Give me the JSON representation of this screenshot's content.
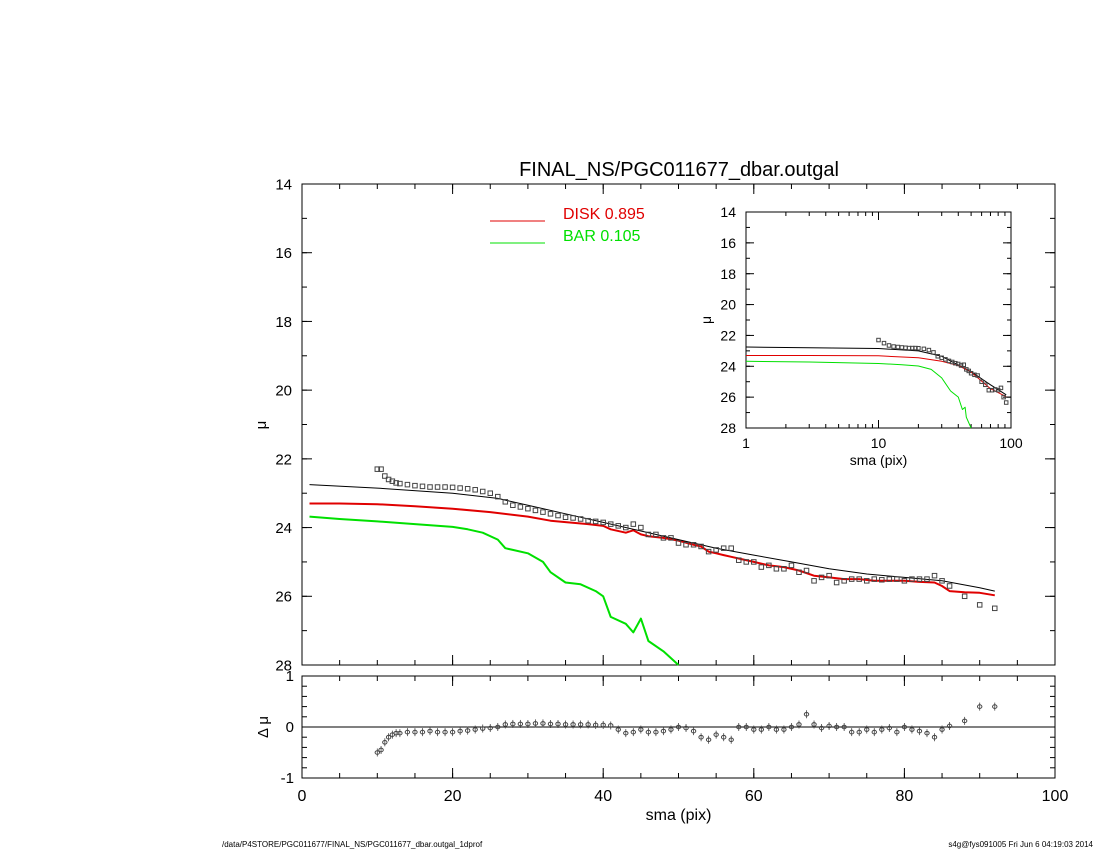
{
  "title": "FINAL_NS/PGC011677_dbar.outgal",
  "footer": {
    "left": "/data/P4STORE/PGC011677/FINAL_NS/PGC011677_dbar.outgal_1dprof",
    "right": "s4g@fys091005  Fri Jun  6 04:19:03 2014"
  },
  "colors": {
    "axes": "#000000",
    "disk": "#e00000",
    "bar": "#00e000",
    "total": "#000000",
    "data": "#444444"
  },
  "chart_data": [
    {
      "type": "line",
      "name": "main-profile",
      "xlabel": "sma (pix)",
      "ylabel": "μ",
      "xlim": [
        0,
        100
      ],
      "ylim": [
        28,
        14
      ],
      "y_inverted": true,
      "xticks": [
        "0",
        "20",
        "40",
        "60",
        "80",
        "100"
      ],
      "yticks": [
        "14",
        "16",
        "18",
        "20",
        "22",
        "24",
        "26",
        "28"
      ],
      "legend": {
        "placement": "top-center",
        "entries": [
          {
            "label": "DISK",
            "value": "0.895",
            "color": "#e00000"
          },
          {
            "label": "BAR",
            "value": "0.105",
            "color": "#00e000"
          }
        ]
      },
      "series": [
        {
          "name": "DISK",
          "color": "#e00000",
          "x": [
            1,
            5,
            10,
            15,
            20,
            25,
            30,
            33,
            35,
            38,
            40,
            41,
            43,
            44,
            45,
            46,
            48,
            50,
            52,
            53,
            54,
            55,
            56,
            57,
            58,
            60,
            62,
            64,
            66,
            68,
            70,
            72,
            74,
            76,
            78,
            80,
            82,
            84,
            85,
            86,
            88,
            90,
            92
          ],
          "y": [
            23.3,
            23.3,
            23.32,
            23.38,
            23.45,
            23.55,
            23.68,
            23.8,
            23.84,
            23.9,
            23.95,
            24.05,
            24.15,
            24.08,
            24.2,
            24.25,
            24.3,
            24.38,
            24.5,
            24.55,
            24.7,
            24.75,
            24.8,
            24.85,
            24.9,
            25.0,
            25.1,
            25.15,
            25.25,
            25.4,
            25.45,
            25.5,
            25.5,
            25.55,
            25.55,
            25.55,
            25.58,
            25.6,
            25.7,
            25.85,
            25.88,
            25.9,
            25.97
          ]
        },
        {
          "name": "BAR",
          "color": "#00e000",
          "x": [
            1,
            5,
            10,
            15,
            20,
            22,
            24,
            26,
            27,
            28,
            30,
            32,
            33,
            35,
            37,
            39,
            40,
            41,
            43,
            44,
            45,
            46,
            48,
            50
          ],
          "y": [
            23.68,
            23.75,
            23.82,
            23.9,
            23.98,
            24.05,
            24.15,
            24.35,
            24.6,
            24.65,
            24.75,
            25.0,
            25.3,
            25.6,
            25.65,
            25.85,
            26.0,
            26.6,
            26.8,
            27.05,
            26.65,
            27.3,
            27.6,
            28.0
          ]
        },
        {
          "name": "",
          "color": "#000000",
          "x": [
            1,
            10,
            20,
            26,
            30,
            35,
            40,
            45,
            50,
            55,
            60,
            65,
            70,
            75,
            80,
            85,
            90,
            92
          ],
          "y": [
            22.75,
            22.85,
            23.0,
            23.15,
            23.35,
            23.6,
            23.85,
            24.1,
            24.35,
            24.6,
            24.8,
            25.0,
            25.2,
            25.35,
            25.45,
            25.55,
            25.75,
            25.85
          ]
        },
        {
          "name": "data",
          "color": "#444444",
          "marker": "square",
          "x": [
            10,
            10.5,
            11,
            11.5,
            12,
            12.5,
            13,
            14,
            15,
            16,
            17,
            18,
            19,
            20,
            21,
            22,
            23,
            24,
            25,
            26,
            27,
            28,
            29,
            30,
            31,
            32,
            33,
            34,
            35,
            36,
            37,
            38,
            39,
            40,
            41,
            42,
            43,
            44,
            45,
            46,
            47,
            48,
            49,
            50,
            51,
            52,
            53,
            54,
            55,
            56,
            57,
            58,
            59,
            60,
            61,
            62,
            63,
            64,
            65,
            66,
            67,
            68,
            69,
            70,
            71,
            72,
            73,
            74,
            75,
            76,
            77,
            78,
            79,
            80,
            81,
            82,
            83,
            84,
            85,
            86,
            88,
            90,
            92
          ],
          "y": [
            22.3,
            22.3,
            22.5,
            22.6,
            22.65,
            22.7,
            22.72,
            22.75,
            22.78,
            22.8,
            22.82,
            22.82,
            22.82,
            22.83,
            22.85,
            22.87,
            22.9,
            22.95,
            23.0,
            23.1,
            23.25,
            23.35,
            23.4,
            23.45,
            23.5,
            23.55,
            23.6,
            23.65,
            23.7,
            23.72,
            23.75,
            23.8,
            23.82,
            23.85,
            23.9,
            23.95,
            24.0,
            23.9,
            24.0,
            24.2,
            24.2,
            24.3,
            24.3,
            24.45,
            24.5,
            24.5,
            24.55,
            24.7,
            24.65,
            24.6,
            24.6,
            24.95,
            25.0,
            25.0,
            25.15,
            25.1,
            25.2,
            25.2,
            25.1,
            25.3,
            25.25,
            25.55,
            25.45,
            25.4,
            25.6,
            25.55,
            25.5,
            25.5,
            25.55,
            25.5,
            25.52,
            25.5,
            25.5,
            25.55,
            25.5,
            25.5,
            25.5,
            25.4,
            25.55,
            25.7,
            26.0,
            26.25,
            26.35
          ]
        }
      ]
    },
    {
      "type": "line",
      "name": "inset-log",
      "xlabel": "sma (pix)",
      "ylabel": "μ",
      "x_scale": "log",
      "xlim": [
        1,
        100
      ],
      "ylim": [
        28,
        14
      ],
      "y_inverted": true,
      "xticks": [
        "1",
        "10",
        "100"
      ],
      "yticks": [
        "14",
        "16",
        "18",
        "20",
        "22",
        "24",
        "26",
        "28"
      ],
      "series": [
        {
          "name": "",
          "color": "#000000",
          "x": [
            1,
            3,
            10,
            20,
            30,
            50,
            70,
            92
          ],
          "y": [
            22.75,
            22.8,
            22.85,
            23.0,
            23.35,
            24.35,
            25.2,
            25.85
          ]
        },
        {
          "name": "DISK",
          "color": "#e00000",
          "x": [
            1,
            3,
            10,
            20,
            30,
            40,
            50,
            70,
            92
          ],
          "y": [
            23.3,
            23.3,
            23.32,
            23.45,
            23.68,
            23.95,
            24.38,
            25.45,
            25.97
          ]
        },
        {
          "name": "BAR",
          "color": "#00e000",
          "x": [
            1,
            3,
            10,
            15,
            20,
            25,
            30,
            35,
            40,
            43,
            45,
            46,
            50
          ],
          "y": [
            23.68,
            23.72,
            23.82,
            23.9,
            23.98,
            24.2,
            24.75,
            25.6,
            26.0,
            26.8,
            26.65,
            27.3,
            28.0
          ]
        },
        {
          "name": "data",
          "color": "#444444",
          "marker": "square",
          "x": [
            10,
            11,
            12,
            13,
            14,
            15,
            16,
            17,
            18,
            19,
            20,
            22,
            24,
            26,
            28,
            30,
            32,
            34,
            36,
            38,
            40,
            42,
            44,
            46,
            48,
            50,
            53,
            56,
            60,
            64,
            68,
            72,
            76,
            80,
            84,
            88,
            92
          ],
          "y": [
            22.3,
            22.5,
            22.65,
            22.72,
            22.75,
            22.78,
            22.8,
            22.82,
            22.82,
            22.82,
            22.83,
            22.87,
            22.95,
            23.1,
            23.35,
            23.45,
            23.55,
            23.65,
            23.72,
            23.8,
            23.85,
            23.95,
            23.9,
            24.2,
            24.3,
            24.45,
            24.55,
            24.6,
            25.0,
            25.2,
            25.55,
            25.55,
            25.5,
            25.55,
            25.4,
            26.0,
            26.35
          ]
        }
      ]
    },
    {
      "type": "scatter",
      "name": "residuals",
      "xlabel": "sma (pix)",
      "ylabel": "Δ μ",
      "xlim": [
        0,
        100
      ],
      "ylim": [
        -1,
        1
      ],
      "xticks": [
        "0",
        "20",
        "40",
        "60",
        "80",
        "100"
      ],
      "yticks": [
        "1",
        "0",
        "-1"
      ],
      "reference_line": 0,
      "series": [
        {
          "name": "residual",
          "color": "#444444",
          "marker": "circle",
          "x": [
            10,
            10.5,
            11,
            11.5,
            12,
            12.5,
            13,
            14,
            15,
            16,
            17,
            18,
            19,
            20,
            21,
            22,
            23,
            24,
            25,
            26,
            27,
            28,
            29,
            30,
            31,
            32,
            33,
            34,
            35,
            36,
            37,
            38,
            39,
            40,
            41,
            42,
            43,
            44,
            45,
            46,
            47,
            48,
            49,
            50,
            51,
            52,
            53,
            54,
            55,
            56,
            57,
            58,
            59,
            60,
            61,
            62,
            63,
            64,
            65,
            66,
            67,
            68,
            69,
            70,
            71,
            72,
            73,
            74,
            75,
            76,
            77,
            78,
            79,
            80,
            81,
            82,
            83,
            84,
            85,
            86,
            88,
            90,
            92
          ],
          "y": [
            -0.5,
            -0.45,
            -0.3,
            -0.2,
            -0.15,
            -0.12,
            -0.12,
            -0.1,
            -0.1,
            -0.1,
            -0.08,
            -0.1,
            -0.1,
            -0.1,
            -0.08,
            -0.07,
            -0.05,
            -0.03,
            -0.02,
            0.0,
            0.05,
            0.06,
            0.06,
            0.06,
            0.07,
            0.07,
            0.06,
            0.06,
            0.05,
            0.05,
            0.05,
            0.05,
            0.04,
            0.04,
            0.03,
            -0.05,
            -0.12,
            -0.1,
            -0.05,
            -0.1,
            -0.1,
            -0.08,
            -0.05,
            0.0,
            -0.02,
            -0.08,
            -0.2,
            -0.25,
            -0.15,
            -0.2,
            -0.25,
            0.0,
            0.0,
            -0.05,
            -0.05,
            0.0,
            -0.05,
            -0.05,
            0.0,
            0.05,
            0.25,
            0.05,
            -0.02,
            0.02,
            0.0,
            0.0,
            -0.1,
            -0.1,
            -0.05,
            -0.1,
            -0.05,
            -0.02,
            -0.1,
            0.0,
            -0.05,
            -0.08,
            -0.12,
            -0.2,
            -0.05,
            0.02,
            0.12,
            0.4,
            0.4
          ]
        }
      ]
    }
  ]
}
